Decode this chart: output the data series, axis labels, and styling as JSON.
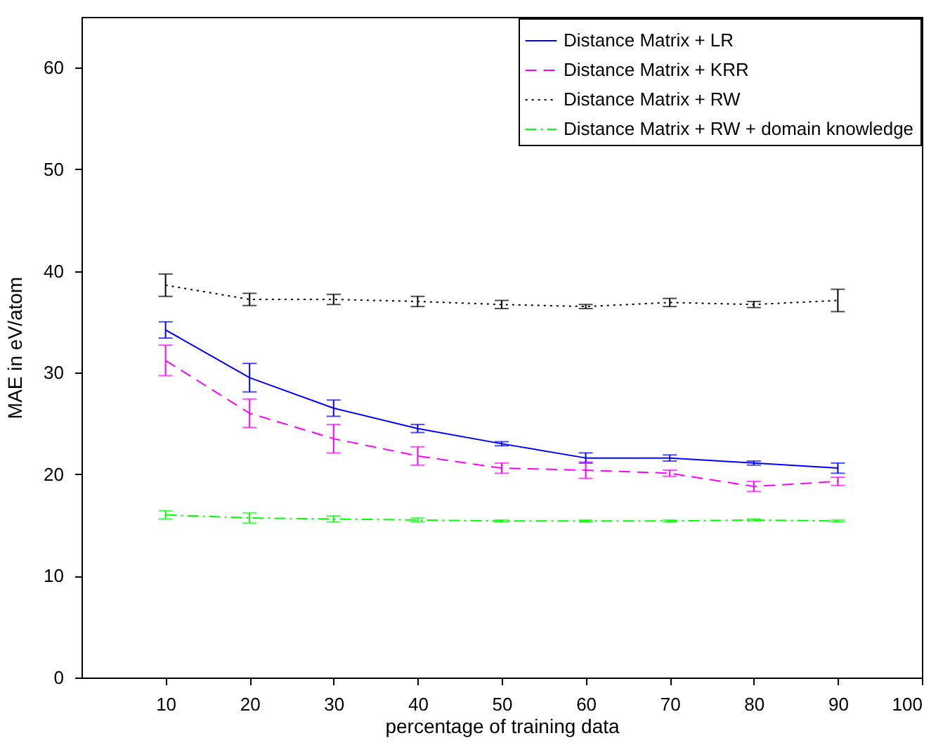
{
  "chart_data": {
    "type": "line",
    "xlabel": "percentage of training data",
    "ylabel": "MAE in eV/atom",
    "x": [
      10,
      20,
      30,
      40,
      50,
      60,
      70,
      80,
      90
    ],
    "series": [
      {
        "name": "Distance Matrix + LR",
        "color": "#0000ff",
        "line_style": "solid",
        "values": [
          34.2,
          29.5,
          26.5,
          24.5,
          23.0,
          21.6,
          21.6,
          21.1,
          20.6
        ],
        "errors": [
          0.8,
          1.4,
          0.8,
          0.4,
          0.2,
          0.5,
          0.3,
          0.2,
          0.5
        ]
      },
      {
        "name": "Distance Matrix + KRR",
        "color": "#ff00ff",
        "line_style": "dashed",
        "values": [
          31.2,
          26.0,
          23.5,
          21.8,
          20.6,
          20.4,
          20.1,
          18.8,
          19.3
        ],
        "errors": [
          1.5,
          1.4,
          1.4,
          0.9,
          0.5,
          0.8,
          0.3,
          0.5,
          0.4
        ]
      },
      {
        "name": "Distance Matrix + RW",
        "color": "#000000",
        "line_style": "dotted",
        "values": [
          38.6,
          37.2,
          37.2,
          37.0,
          36.7,
          36.5,
          36.9,
          36.7,
          37.1
        ],
        "errors": [
          1.1,
          0.6,
          0.5,
          0.5,
          0.4,
          0.2,
          0.4,
          0.3,
          1.1
        ]
      },
      {
        "name": "Distance Matrix + RW + domain knowledge",
        "color": "#00ff00",
        "line_style": "dashdot",
        "values": [
          16.0,
          15.7,
          15.6,
          15.5,
          15.4,
          15.4,
          15.4,
          15.5,
          15.4
        ],
        "errors": [
          0.4,
          0.5,
          0.3,
          0.2,
          0.1,
          0.1,
          0.1,
          0.1,
          0.1
        ]
      }
    ],
    "xlim": [
      0,
      100
    ],
    "xticks": [
      10,
      20,
      30,
      40,
      50,
      60,
      70,
      80,
      90,
      100
    ],
    "ylim": [
      0,
      65
    ],
    "yticks": [
      0,
      10,
      20,
      30,
      40,
      50,
      60
    ],
    "grid": false,
    "legend": "top right",
    "marker": "none"
  }
}
